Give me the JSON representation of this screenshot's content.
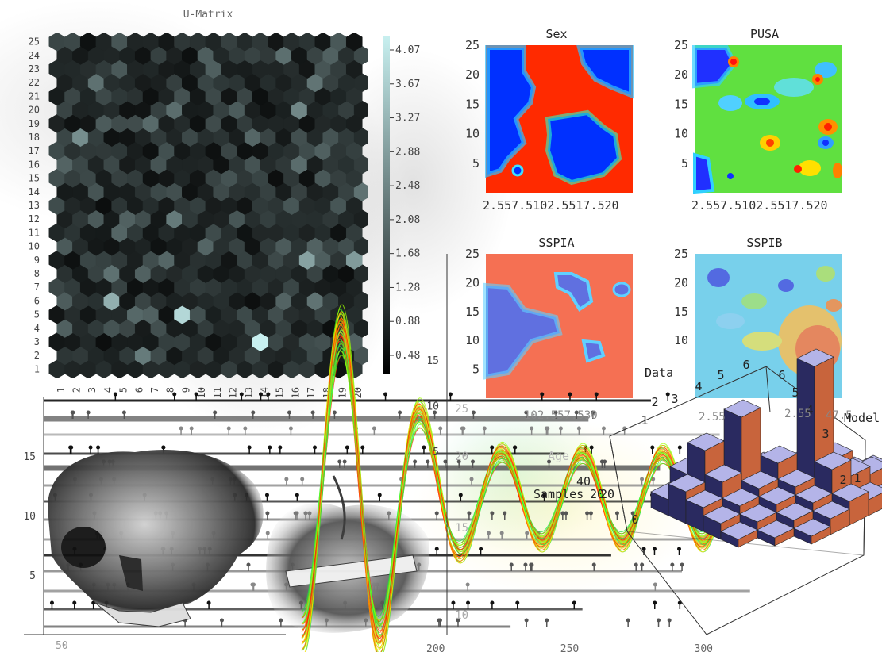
{
  "umatrix": {
    "title": "U-Matrix",
    "y_ticks": [
      "1",
      "2",
      "3",
      "4",
      "5",
      "6",
      "7",
      "8",
      "9",
      "10",
      "11",
      "12",
      "13",
      "14",
      "15",
      "16",
      "17",
      "18",
      "19",
      "20",
      "21",
      "22",
      "23",
      "24",
      "25"
    ],
    "x_ticks": [
      "1",
      "2",
      "3",
      "4",
      "5",
      "6",
      "7",
      "8",
      "9",
      "10",
      "11",
      "12",
      "13",
      "14",
      "15",
      "16",
      "17",
      "18",
      "19",
      "20"
    ],
    "colorbar_ticks": [
      "4.07",
      "3.67",
      "3.27",
      "2.88",
      "2.48",
      "2.08",
      "1.68",
      "1.28",
      "0.88",
      "0.48"
    ],
    "colorbar_range": [
      0.48,
      4.07
    ],
    "colors": {
      "low": "#000000",
      "high": "#c8f0f0"
    }
  },
  "chart_data": [
    {
      "type": "heatmap",
      "title": "U-Matrix",
      "grid": "hexagonal",
      "rows": 25,
      "cols": 20,
      "value_range": [
        0.48,
        4.07
      ],
      "highlights": [
        {
          "x": 14,
          "y": 3,
          "value": 4.07
        },
        {
          "x": 9,
          "y": 5,
          "value": 3.7
        },
        {
          "x": 4,
          "y": 6,
          "value": 3.1
        },
        {
          "x": 17,
          "y": 9,
          "value": 2.9
        },
        {
          "x": 20,
          "y": 9,
          "value": 2.8
        },
        {
          "x": 2,
          "y": 18,
          "value": 2.6
        },
        {
          "x": 16,
          "y": 20,
          "value": 2.5
        },
        {
          "x": 8,
          "y": 12,
          "value": 2.3
        }
      ]
    },
    {
      "type": "heatmap",
      "title": "Sex",
      "yticks": [
        "5",
        "10",
        "15",
        "20",
        "25"
      ],
      "xticks_text": "2.557.5102.5517.520",
      "xlim": [
        0,
        20
      ],
      "ylim": [
        0,
        25
      ]
    },
    {
      "type": "heatmap",
      "title": "PUSA",
      "yticks": [
        "5",
        "10",
        "15",
        "20",
        "25"
      ],
      "xticks_text": "2.557.5102.5517.520",
      "xlim": [
        0,
        20
      ],
      "ylim": [
        0,
        25
      ]
    },
    {
      "type": "heatmap",
      "title": "SSPIA",
      "yticks": [
        "5",
        "10",
        "15",
        "20",
        "25"
      ],
      "xlim": [
        0,
        20
      ],
      "ylim": [
        0,
        25
      ]
    },
    {
      "type": "heatmap",
      "title": "SSPIB",
      "yticks": [
        "10",
        "15",
        "20",
        "25"
      ],
      "xlim": [
        0,
        20
      ],
      "ylim": [
        0,
        25
      ]
    },
    {
      "type": "line",
      "y_ticks": [
        "5",
        "10",
        "15"
      ],
      "x_ticks": [
        "200",
        "250",
        "300"
      ],
      "left_ticks": [
        "5",
        "10",
        "15"
      ],
      "left_y_ticks": [
        "10",
        "15",
        "20",
        "25"
      ],
      "side_labels": [
        "10",
        "15",
        "25",
        "20"
      ],
      "series_note": "many overlaid oscillating curves colored green to red",
      "peaks": [
        {
          "x": 165,
          "y": 23
        },
        {
          "x": 200,
          "y": 12
        },
        {
          "x": 230,
          "y": 13
        },
        {
          "x": 265,
          "y": 14
        },
        {
          "x": 290,
          "y": 12
        }
      ]
    },
    {
      "type": "bar",
      "subtype": "3d-histogram",
      "axis_labels": [
        "Data",
        "Model",
        "Samples",
        "Age"
      ],
      "data_ticks": [
        "3",
        "4",
        "5",
        "6"
      ],
      "model_ticks": [
        "6",
        "5",
        "4",
        "3",
        "2",
        "1"
      ],
      "samples_ticks": [
        "20",
        "40"
      ],
      "z_ticks": [
        "0",
        "1",
        "2"
      ],
      "misc_ticks": [
        "2.55",
        "2.55",
        "102.557.530",
        "47.5"
      ],
      "colors": {
        "top": "#b4b4e8",
        "side": "#c8643c",
        "front": "#2a2a60"
      }
    }
  ],
  "fragments": {
    "bottom_axis_left": "50",
    "age_label": "Age",
    "samples_label": "Samples",
    "samples_value": "20",
    "data_label": "Data",
    "model_label": "Model"
  }
}
